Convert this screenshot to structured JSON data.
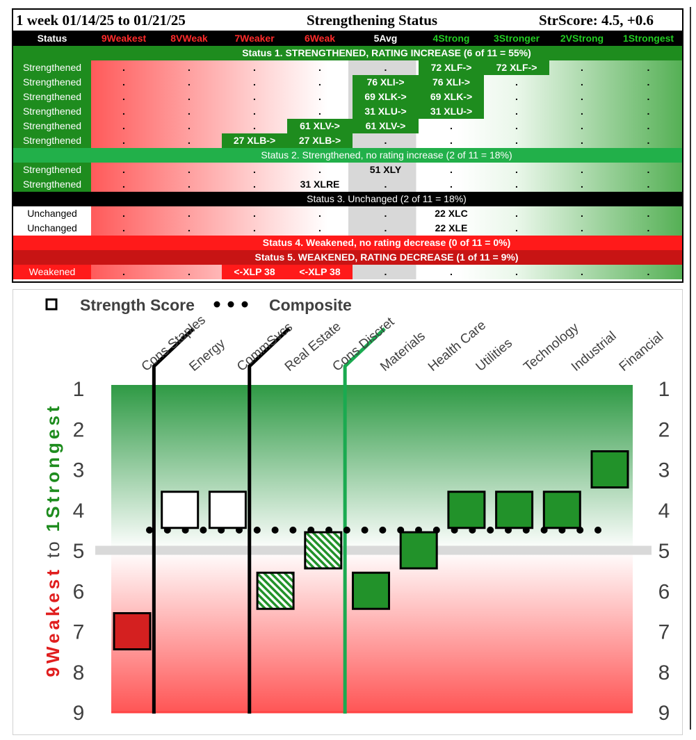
{
  "table": {
    "period": "1 week 01/14/25 to 01/21/25",
    "title": "Strengthening Status",
    "score": "StrScore: 4.5, +0.6",
    "status_header": "Status",
    "columns": [
      {
        "label": "9Weakest",
        "color": "#ff2a2a"
      },
      {
        "label": "8VWeak",
        "color": "#ff2a2a"
      },
      {
        "label": "7Weaker",
        "color": "#ff2a2a"
      },
      {
        "label": "6Weak",
        "color": "#ff2a2a"
      },
      {
        "label": "5Avg",
        "color": "#ffffff"
      },
      {
        "label": "4Strong",
        "color": "#22cc22"
      },
      {
        "label": "3Stronger",
        "color": "#22cc22"
      },
      {
        "label": "2VStrong",
        "color": "#22cc22"
      },
      {
        "label": "1Strongest",
        "color": "#22cc22"
      }
    ],
    "bands": {
      "s1": "Status 1. STRENGTHENED, RATING INCREASE (6 of 11 = 55%)",
      "s2": "Status 2. Strengthened, no rating increase (2 of 11 = 18%)",
      "s3": "Status 3. Unchanged (2 of 11 = 18%)",
      "s4": "Status 4. Weakened, no rating decrease (0 of 11 = 0%)",
      "s5": "Status 5. WEAKENED, RATING DECREASE (1 of 11 = 9%)"
    },
    "dot": ".",
    "rows": [
      {
        "status": "Strengthened",
        "kind": "green",
        "cells": [
          ".",
          ".",
          ".",
          ".",
          ".",
          "72 XLF->",
          "72 XLF->",
          ".",
          "."
        ],
        "marks": [
          5,
          6
        ]
      },
      {
        "status": "Strengthened",
        "kind": "green",
        "cells": [
          ".",
          ".",
          ".",
          ".",
          "76 XLI->",
          "76 XLI->",
          ".",
          ".",
          "."
        ],
        "marks": [
          4,
          5
        ]
      },
      {
        "status": "Strengthened",
        "kind": "green",
        "cells": [
          ".",
          ".",
          ".",
          ".",
          "69 XLK->",
          "69 XLK->",
          ".",
          ".",
          "."
        ],
        "marks": [
          4,
          5
        ]
      },
      {
        "status": "Strengthened",
        "kind": "green",
        "cells": [
          ".",
          ".",
          ".",
          ".",
          "31 XLU->",
          "31 XLU->",
          ".",
          ".",
          "."
        ],
        "marks": [
          4,
          5
        ]
      },
      {
        "status": "Strengthened",
        "kind": "green",
        "cells": [
          ".",
          ".",
          ".",
          "61 XLV->",
          "61 XLV->",
          ".",
          ".",
          ".",
          "."
        ],
        "marks": [
          3,
          4
        ]
      },
      {
        "status": "Strengthened",
        "kind": "green",
        "cells": [
          ".",
          ".",
          "27 XLB->",
          "27 XLB->",
          ".",
          ".",
          ".",
          ".",
          "."
        ],
        "marks": [
          2,
          3
        ]
      },
      {
        "status": "Strengthened",
        "kind": "green",
        "cells": [
          ".",
          ".",
          ".",
          ".",
          "51 XLY",
          ".",
          ".",
          ".",
          "."
        ],
        "marks": []
      },
      {
        "status": "Strengthened",
        "kind": "green",
        "cells": [
          ".",
          ".",
          ".",
          "31 XLRE",
          ".",
          ".",
          ".",
          ".",
          "."
        ],
        "marks": []
      },
      {
        "status": "Unchanged",
        "kind": "white",
        "cells": [
          ".",
          ".",
          ".",
          ".",
          ".",
          "22 XLC",
          ".",
          ".",
          "."
        ],
        "marks": []
      },
      {
        "status": "Unchanged",
        "kind": "white",
        "cells": [
          ".",
          ".",
          ".",
          ".",
          ".",
          "22 XLE",
          ".",
          ".",
          "."
        ],
        "marks": []
      },
      {
        "status": "Weakened",
        "kind": "red",
        "cells": [
          ".",
          ".",
          "<-XLP 38",
          "<-XLP 38",
          ".",
          ".",
          ".",
          ".",
          "."
        ],
        "marks": [
          2,
          3
        ]
      }
    ]
  },
  "chart_data": {
    "type": "scatter",
    "legend": {
      "marker_label": "Strength Score",
      "dots_label": "Composite",
      "placement": "top-left"
    },
    "categories": [
      "Cons Staples",
      "Energy",
      "CommSvcs",
      "Real Estate",
      "Cons Discret",
      "Materials",
      "Health Care",
      "Utilities",
      "Technology",
      "Industrial",
      "Financial"
    ],
    "strength_score": [
      7,
      4,
      4,
      6,
      5,
      6,
      5,
      4,
      4,
      4,
      3
    ],
    "marker_style": [
      "red",
      "white",
      "white",
      "hatched",
      "hatched",
      "green",
      "green",
      "green",
      "green",
      "green",
      "green"
    ],
    "composite": 4.5,
    "neutral_line": 5,
    "ylim": [
      1,
      9
    ],
    "y_ticks": [
      "1",
      "2",
      "3",
      "4",
      "5",
      "6",
      "7",
      "8",
      "9"
    ],
    "y_axis_label_red": "9Weakest",
    "y_axis_label_mid": "to",
    "y_axis_label_green": "1Strongest",
    "dividers": [
      {
        "after_index": 0,
        "color": "#000000"
      },
      {
        "after_index": 2,
        "color": "#000000"
      },
      {
        "after_index": 4,
        "color": "#1aaa50"
      }
    ],
    "colors": {
      "green": "#22922a",
      "red": "#d42020",
      "white": "#ffffff",
      "hatch": "#22922a"
    }
  }
}
